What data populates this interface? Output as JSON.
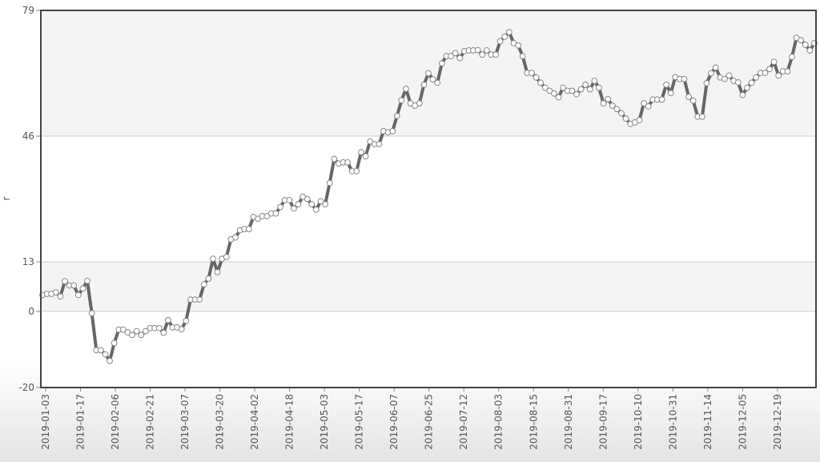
{
  "chart_data": {
    "type": "line",
    "title": "",
    "xlabel": "",
    "ylabel": "r",
    "ylim": [
      -20,
      79
    ],
    "y_ticks": [
      79,
      46,
      13,
      0,
      -20
    ],
    "x_tick_labels": [
      "2019-01-03",
      "2019-01-17",
      "2019-02-06",
      "2019-02-21",
      "2019-03-07",
      "2019-03-20",
      "2019-04-02",
      "2019-04-18",
      "2019-05-03",
      "2019-05-17",
      "2019-06-07",
      "2019-06-25",
      "2019-07-12",
      "2019-08-03",
      "2019-08-15",
      "2019-08-31",
      "2019-09-17",
      "2019-10-10",
      "2019-10-31",
      "2019-11-14",
      "2019-12-05",
      "2019-12-19"
    ],
    "band_colors": [
      "#f4f4f4",
      "#ffffff"
    ],
    "line_color": "#666666",
    "marker_fill": "#ffffff",
    "marker_stroke": "#888888",
    "grid": true,
    "legend": "none",
    "series": [
      {
        "values": [
          4.3,
          4.6,
          4.6,
          5.0,
          3.9,
          7.9,
          6.8,
          6.8,
          4.3,
          6.0,
          8.0,
          -0.5,
          -10.2,
          -10.2,
          -11.3,
          -13.0,
          -8.3,
          -4.8,
          -4.8,
          -5.5,
          -6.2,
          -5.2,
          -6.2,
          -5.2,
          -4.4,
          -4.4,
          -4.4,
          -5.6,
          -2.3,
          -4.2,
          -4.2,
          -4.7,
          -2.5,
          3.1,
          3.1,
          3.1,
          7.1,
          8.6,
          13.8,
          10.3,
          13.8,
          14.3,
          18.9,
          19.4,
          21.3,
          21.6,
          21.6,
          24.8,
          24.3,
          25.0,
          25.0,
          25.7,
          25.7,
          27.4,
          29.2,
          29.2,
          27.0,
          28.1,
          30.1,
          29.5,
          28.1,
          26.7,
          28.9,
          28.1,
          33.7,
          40.0,
          38.8,
          39.1,
          39.1,
          36.8,
          36.8,
          41.8,
          40.7,
          44.6,
          43.9,
          43.9,
          47.3,
          47.0,
          47.3,
          51.3,
          55.4,
          58.4,
          54.6,
          54.0,
          54.6,
          59.5,
          62.5,
          60.9,
          60.0,
          65.1,
          67.0,
          67.0,
          67.8,
          66.5,
          68.3,
          68.5,
          68.5,
          68.6,
          67.4,
          68.5,
          67.4,
          67.4,
          70.9,
          72.1,
          73.3,
          70.4,
          69.8,
          67.0,
          62.6,
          62.6,
          61.4,
          60.0,
          58.7,
          57.9,
          57.2,
          56.2,
          58.7,
          57.9,
          57.9,
          57.0,
          58.3,
          59.5,
          58.3,
          60.5,
          58.7,
          54.6,
          55.7,
          54.0,
          53.1,
          52.0,
          50.6,
          49.2,
          49.6,
          50.2,
          54.6,
          53.8,
          55.6,
          55.6,
          55.6,
          59.5,
          57.3,
          61.5,
          61.0,
          61.0,
          56.3,
          55.3,
          51.1,
          51.1,
          59.9,
          62.5,
          64.0,
          61.4,
          61.0,
          61.9,
          60.5,
          60.1,
          56.8,
          58.7,
          60.0,
          61.4,
          62.6,
          62.6,
          63.6,
          65.5,
          61.9,
          63.0,
          63.0,
          66.8,
          71.8,
          71.2,
          70.0,
          68.5,
          70.4
        ]
      }
    ]
  }
}
